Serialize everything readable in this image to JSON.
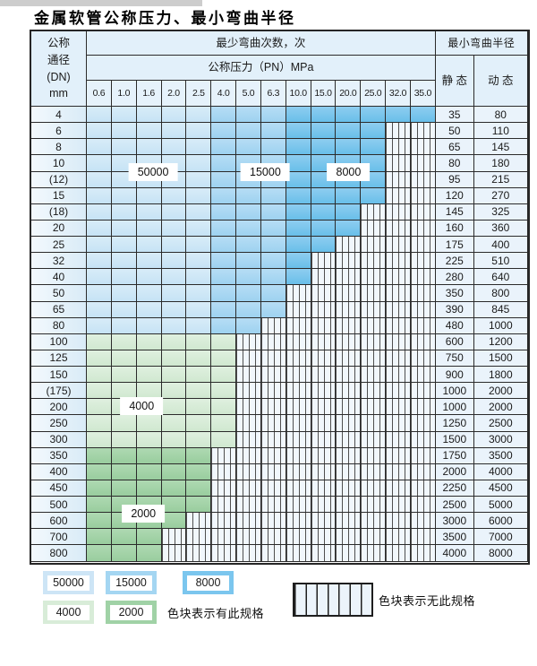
{
  "title": "金属软管公称压力、最小弯曲半径",
  "table": {
    "header": {
      "dn_lines": "公称\n通径\n(DN)\nmm",
      "cycles_title": "最少弯曲次数，次",
      "pressure_title": "公称压力（PN）MPa",
      "pressure_columns": [
        "0.6",
        "1.0",
        "1.6",
        "2.0",
        "2.5",
        "4.0",
        "5.0",
        "6.3",
        "10.0",
        "15.0",
        "20.0",
        "25.0",
        "32.0",
        "35.0"
      ],
      "radius_title": "最小弯曲半径",
      "static_label": "静 态",
      "dynamic_label": "动 态"
    },
    "zone_meaning": {
      "b1": "50000",
      "b2": "15000",
      "b3": "8000",
      "g1": "4000",
      "g2": "2000",
      "x": "无此规格"
    },
    "zone_colors": {
      "b1": "#cde5f6",
      "b2": "#a4d6f2",
      "b3": "#7bc6ee",
      "g1": "#d8ecd8",
      "g2": "#a0d2a6"
    },
    "rows": [
      {
        "dn": "4",
        "fill": [
          [
            "b1",
            5
          ],
          [
            "b2",
            3
          ],
          [
            "b3",
            6
          ]
        ],
        "static": "35",
        "dynamic": "80"
      },
      {
        "dn": "6",
        "fill": [
          [
            "b1",
            5
          ],
          [
            "b2",
            3
          ],
          [
            "b3",
            4
          ],
          [
            "x",
            2
          ]
        ],
        "static": "50",
        "dynamic": "110"
      },
      {
        "dn": "8",
        "fill": [
          [
            "b1",
            5
          ],
          [
            "b2",
            3
          ],
          [
            "b3",
            4
          ],
          [
            "x",
            2
          ]
        ],
        "static": "65",
        "dynamic": "145"
      },
      {
        "dn": "10",
        "fill": [
          [
            "b1",
            5
          ],
          [
            "b2",
            3
          ],
          [
            "b3",
            4
          ],
          [
            "x",
            2
          ]
        ],
        "static": "80",
        "dynamic": "180"
      },
      {
        "dn": "(12)",
        "fill": [
          [
            "b1",
            5
          ],
          [
            "b2",
            3
          ],
          [
            "b3",
            4
          ],
          [
            "x",
            2
          ]
        ],
        "static": "95",
        "dynamic": "215"
      },
      {
        "dn": "15",
        "fill": [
          [
            "b1",
            5
          ],
          [
            "b2",
            3
          ],
          [
            "b3",
            4
          ],
          [
            "x",
            2
          ]
        ],
        "static": "120",
        "dynamic": "270"
      },
      {
        "dn": "(18)",
        "fill": [
          [
            "b1",
            5
          ],
          [
            "b2",
            3
          ],
          [
            "b3",
            3
          ],
          [
            "x",
            3
          ]
        ],
        "static": "145",
        "dynamic": "325"
      },
      {
        "dn": "20",
        "fill": [
          [
            "b1",
            5
          ],
          [
            "b2",
            3
          ],
          [
            "b3",
            3
          ],
          [
            "x",
            3
          ]
        ],
        "static": "160",
        "dynamic": "360"
      },
      {
        "dn": "25",
        "fill": [
          [
            "b1",
            5
          ],
          [
            "b2",
            3
          ],
          [
            "b3",
            2
          ],
          [
            "x",
            4
          ]
        ],
        "static": "175",
        "dynamic": "400"
      },
      {
        "dn": "32",
        "fill": [
          [
            "b1",
            5
          ],
          [
            "b2",
            3
          ],
          [
            "b3",
            1
          ],
          [
            "x",
            5
          ]
        ],
        "static": "225",
        "dynamic": "510"
      },
      {
        "dn": "40",
        "fill": [
          [
            "b1",
            5
          ],
          [
            "b2",
            3
          ],
          [
            "b3",
            1
          ],
          [
            "x",
            5
          ]
        ],
        "static": "280",
        "dynamic": "640"
      },
      {
        "dn": "50",
        "fill": [
          [
            "b1",
            5
          ],
          [
            "b2",
            3
          ],
          [
            "x",
            6
          ]
        ],
        "static": "350",
        "dynamic": "800"
      },
      {
        "dn": "65",
        "fill": [
          [
            "b1",
            5
          ],
          [
            "b2",
            3
          ],
          [
            "x",
            6
          ]
        ],
        "static": "390",
        "dynamic": "845"
      },
      {
        "dn": "80",
        "fill": [
          [
            "b1",
            5
          ],
          [
            "b2",
            2
          ],
          [
            "x",
            7
          ]
        ],
        "static": "480",
        "dynamic": "1000"
      },
      {
        "dn": "100",
        "fill": [
          [
            "g1",
            6
          ],
          [
            "x",
            8
          ]
        ],
        "static": "600",
        "dynamic": "1200"
      },
      {
        "dn": "125",
        "fill": [
          [
            "g1",
            6
          ],
          [
            "x",
            8
          ]
        ],
        "static": "750",
        "dynamic": "1500"
      },
      {
        "dn": "150",
        "fill": [
          [
            "g1",
            6
          ],
          [
            "x",
            8
          ]
        ],
        "static": "900",
        "dynamic": "1800"
      },
      {
        "dn": "(175)",
        "fill": [
          [
            "g1",
            6
          ],
          [
            "x",
            8
          ]
        ],
        "static": "1000",
        "dynamic": "2000"
      },
      {
        "dn": "200",
        "fill": [
          [
            "g1",
            6
          ],
          [
            "x",
            8
          ]
        ],
        "static": "1000",
        "dynamic": "2000"
      },
      {
        "dn": "250",
        "fill": [
          [
            "g1",
            6
          ],
          [
            "x",
            8
          ]
        ],
        "static": "1250",
        "dynamic": "2500"
      },
      {
        "dn": "300",
        "fill": [
          [
            "g1",
            6
          ],
          [
            "x",
            8
          ]
        ],
        "static": "1500",
        "dynamic": "3000"
      },
      {
        "dn": "350",
        "fill": [
          [
            "g2",
            5
          ],
          [
            "x",
            9
          ]
        ],
        "static": "1750",
        "dynamic": "3500"
      },
      {
        "dn": "400",
        "fill": [
          [
            "g2",
            5
          ],
          [
            "x",
            9
          ]
        ],
        "static": "2000",
        "dynamic": "4000"
      },
      {
        "dn": "450",
        "fill": [
          [
            "g2",
            5
          ],
          [
            "x",
            9
          ]
        ],
        "static": "2250",
        "dynamic": "4500"
      },
      {
        "dn": "500",
        "fill": [
          [
            "g2",
            5
          ],
          [
            "x",
            9
          ]
        ],
        "static": "2500",
        "dynamic": "5000"
      },
      {
        "dn": "600",
        "fill": [
          [
            "g2",
            4
          ],
          [
            "x",
            10
          ]
        ],
        "static": "3000",
        "dynamic": "6000"
      },
      {
        "dn": "700",
        "fill": [
          [
            "g2",
            3
          ],
          [
            "x",
            11
          ]
        ],
        "static": "3500",
        "dynamic": "7000"
      },
      {
        "dn": "800",
        "fill": [
          [
            "g2",
            3
          ],
          [
            "x",
            11
          ]
        ],
        "static": "4000",
        "dynamic": "8000"
      }
    ],
    "overlay_labels": [
      {
        "value": "50000",
        "col": 2.66,
        "row": 4.0
      },
      {
        "value": "15000",
        "col": 7.16,
        "row": 4.0
      },
      {
        "value": "8000",
        "col": 10.5,
        "row": 4.0
      },
      {
        "value": "4000",
        "col": 2.2,
        "row": 18.4
      },
      {
        "value": "2000",
        "col": 2.27,
        "row": 25.05
      }
    ]
  },
  "legend": {
    "available_items": [
      {
        "value": "50000",
        "zone": "b1"
      },
      {
        "value": "15000",
        "zone": "b2"
      },
      {
        "value": "8000",
        "zone": "b3"
      },
      {
        "value": "4000",
        "zone": "g1"
      },
      {
        "value": "2000",
        "zone": "g2"
      }
    ],
    "available_text": "色块表示有此规格",
    "unavailable_text": "色块表示无此规格"
  }
}
